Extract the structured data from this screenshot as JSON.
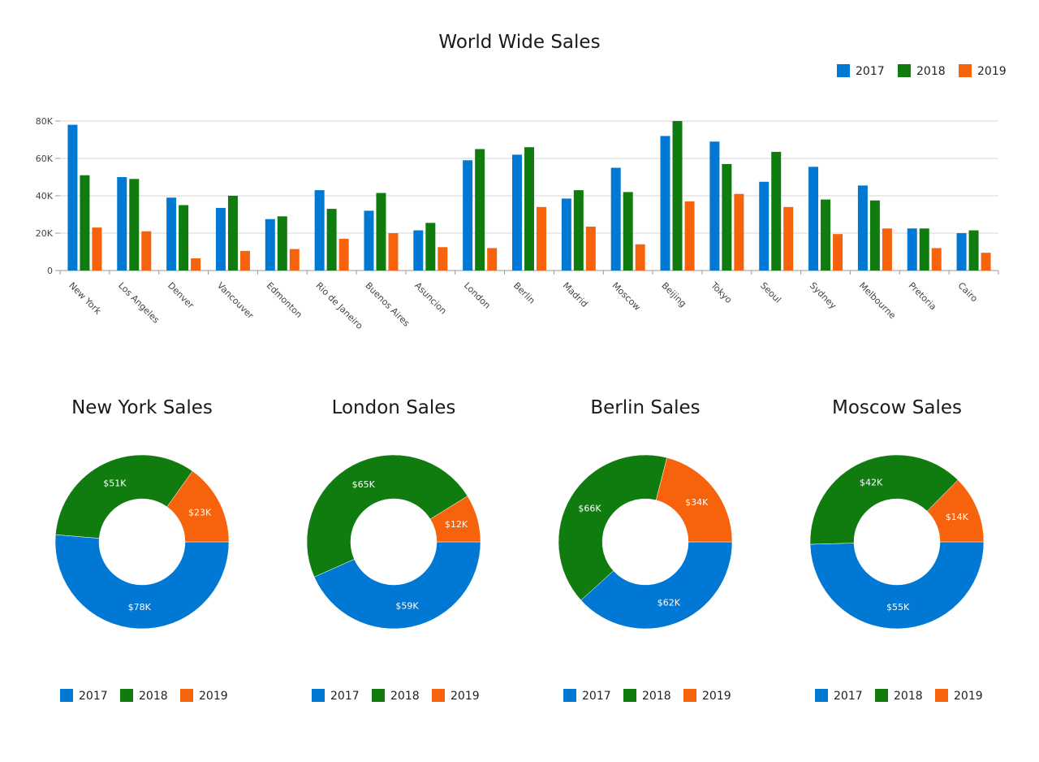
{
  "colors": {
    "2017": "#0078d4",
    "2018": "#107c10",
    "2019": "#f7630c"
  },
  "chart_data": [
    {
      "type": "bar",
      "title": "World Wide Sales",
      "legend": [
        "2017",
        "2018",
        "2019"
      ],
      "legend_position": "top-right",
      "grid": true,
      "ylim": [
        0,
        80000
      ],
      "yticks": [
        {
          "value": 0,
          "label": "0"
        },
        {
          "value": 20000,
          "label": "20K"
        },
        {
          "value": 40000,
          "label": "40K"
        },
        {
          "value": 60000,
          "label": "60K"
        },
        {
          "value": 80000,
          "label": "80K"
        }
      ],
      "categories": [
        "New York",
        "Los Angeles",
        "Denver",
        "Vancouver",
        "Edmonton",
        "Rio de Janeiro",
        "Buenos Aires",
        "Asuncion",
        "London",
        "Berlin",
        "Madrid",
        "Moscow",
        "Beijing",
        "Tokyo",
        "Seoul",
        "Sydney",
        "Melbourne",
        "Pretoria",
        "Cairo"
      ],
      "series": [
        {
          "name": "2017",
          "values": [
            78000,
            50000,
            39000,
            33500,
            27500,
            43000,
            32000,
            21500,
            59000,
            62000,
            38500,
            55000,
            72000,
            69000,
            47500,
            55500,
            45500,
            22500,
            20000
          ]
        },
        {
          "name": "2018",
          "values": [
            51000,
            49000,
            35000,
            40000,
            29000,
            33000,
            41500,
            25500,
            65000,
            66000,
            43000,
            42000,
            80000,
            57000,
            63500,
            38000,
            37500,
            22500,
            21500
          ]
        },
        {
          "name": "2019",
          "values": [
            23000,
            21000,
            6500,
            10500,
            11500,
            17000,
            20000,
            12500,
            12000,
            34000,
            23500,
            14000,
            37000,
            41000,
            34000,
            19500,
            22500,
            12000,
            9500
          ]
        }
      ]
    },
    {
      "type": "pie",
      "title": "New York Sales",
      "legend": [
        "2017",
        "2018",
        "2019"
      ],
      "slices": [
        {
          "name": "2017",
          "value": 78000,
          "label": "$78K"
        },
        {
          "name": "2018",
          "value": 51000,
          "label": "$51K"
        },
        {
          "name": "2019",
          "value": 23000,
          "label": "$23K"
        }
      ]
    },
    {
      "type": "pie",
      "title": "London Sales",
      "legend": [
        "2017",
        "2018",
        "2019"
      ],
      "slices": [
        {
          "name": "2017",
          "value": 59000,
          "label": "$59K"
        },
        {
          "name": "2018",
          "value": 65000,
          "label": "$65K"
        },
        {
          "name": "2019",
          "value": 12000,
          "label": "$12K"
        }
      ]
    },
    {
      "type": "pie",
      "title": "Berlin Sales",
      "legend": [
        "2017",
        "2018",
        "2019"
      ],
      "slices": [
        {
          "name": "2017",
          "value": 62000,
          "label": "$62K"
        },
        {
          "name": "2018",
          "value": 66000,
          "label": "$66K"
        },
        {
          "name": "2019",
          "value": 34000,
          "label": "$34K"
        }
      ]
    },
    {
      "type": "pie",
      "title": "Moscow Sales",
      "legend": [
        "2017",
        "2018",
        "2019"
      ],
      "slices": [
        {
          "name": "2017",
          "value": 55000,
          "label": "$55K"
        },
        {
          "name": "2018",
          "value": 42000,
          "label": "$42K"
        },
        {
          "name": "2019",
          "value": 14000,
          "label": "$14K"
        }
      ]
    }
  ]
}
